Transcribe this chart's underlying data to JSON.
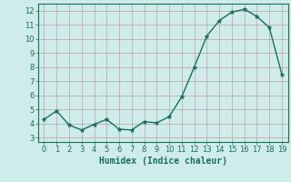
{
  "x": [
    0,
    1,
    2,
    3,
    4,
    5,
    6,
    7,
    8,
    9,
    10,
    11,
    12,
    13,
    14,
    15,
    16,
    17,
    18,
    19
  ],
  "y": [
    4.3,
    4.9,
    3.9,
    3.55,
    3.95,
    4.3,
    3.6,
    3.55,
    4.15,
    4.05,
    4.5,
    5.9,
    8.0,
    10.2,
    11.3,
    11.9,
    12.1,
    11.6,
    10.8,
    7.5
  ],
  "line_color": "#1a6e5e",
  "marker": "*",
  "marker_size": 3.5,
  "bg_color": "#cdecea",
  "grid_color": "#c0a0a0",
  "xlabel": "Humidex (Indice chaleur)",
  "xlim": [
    -0.5,
    19.5
  ],
  "ylim": [
    2.7,
    12.5
  ],
  "yticks": [
    3,
    4,
    5,
    6,
    7,
    8,
    9,
    10,
    11,
    12
  ],
  "xticks": [
    0,
    1,
    2,
    3,
    4,
    5,
    6,
    7,
    8,
    9,
    10,
    11,
    12,
    13,
    14,
    15,
    16,
    17,
    18,
    19
  ],
  "tick_fontsize": 6,
  "xlabel_fontsize": 7,
  "line_width": 1.0,
  "spine_color": "#1a6e5e"
}
